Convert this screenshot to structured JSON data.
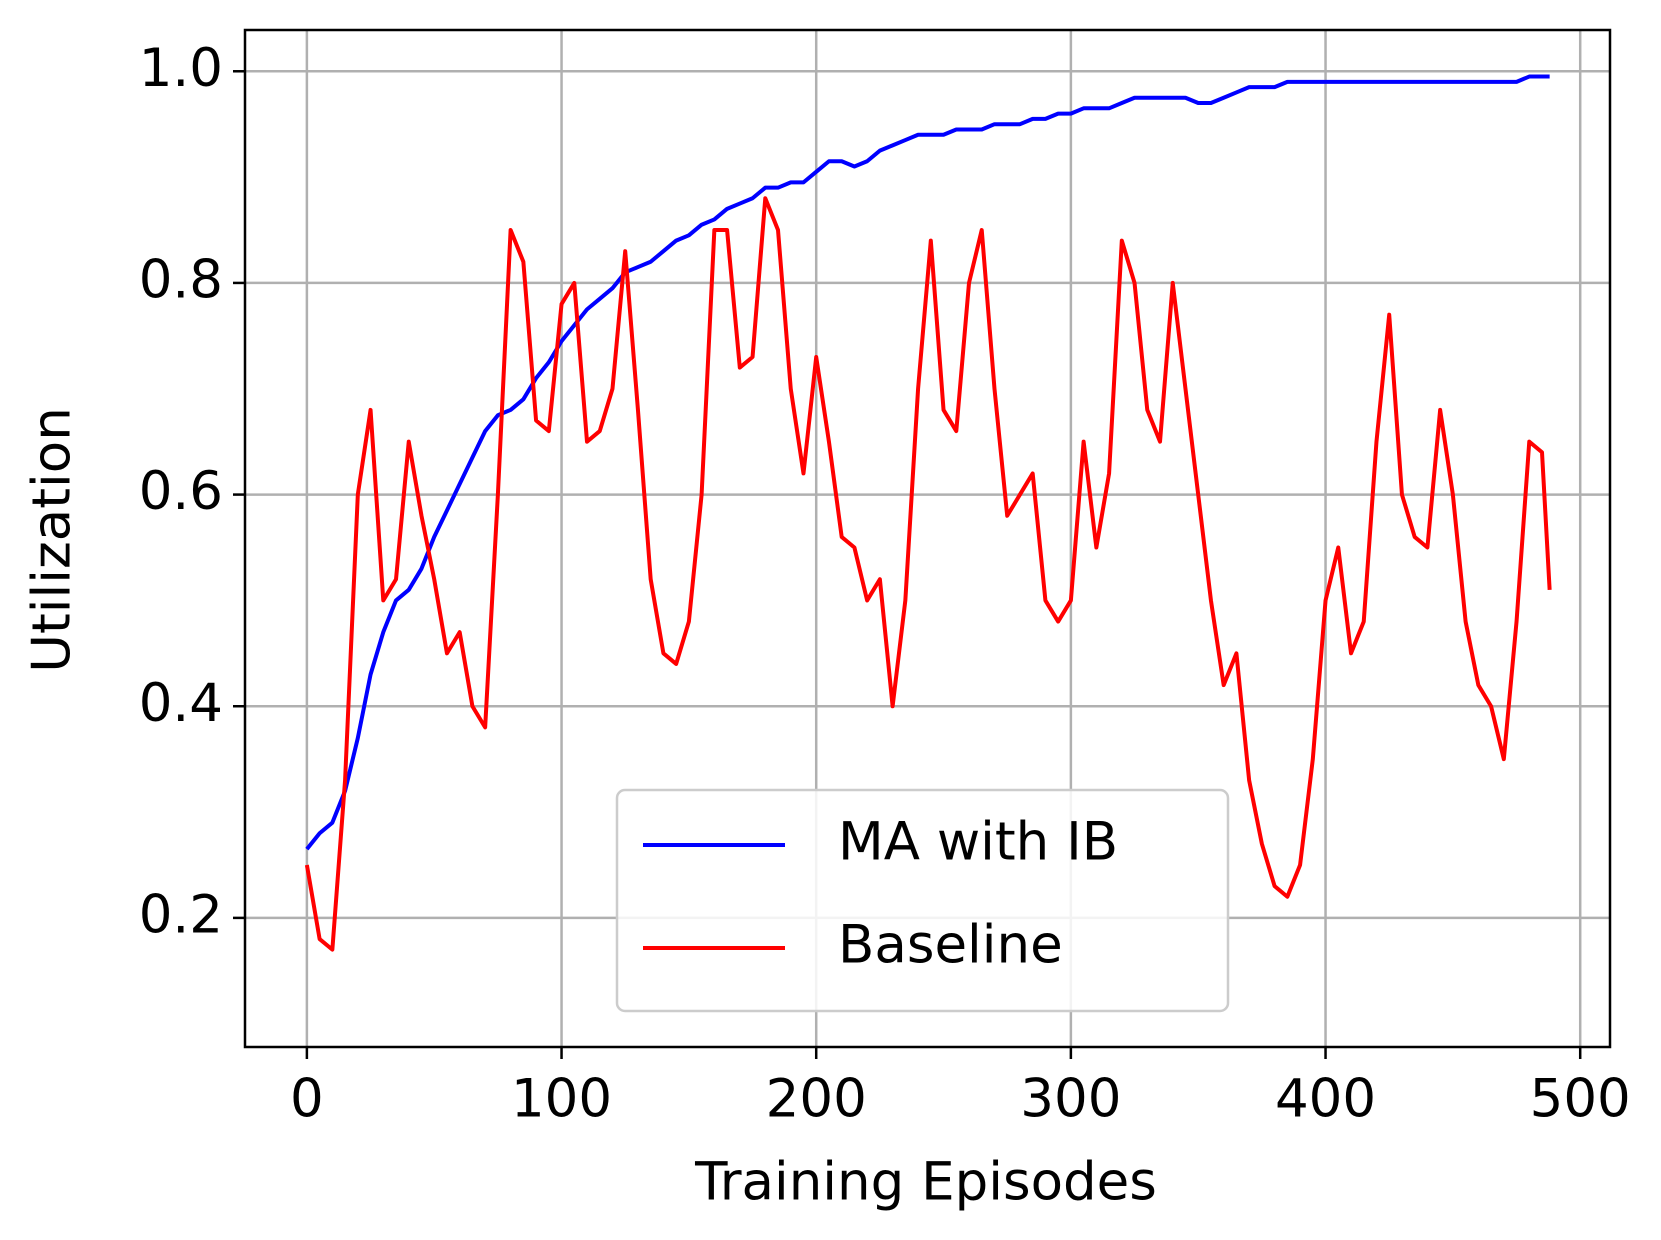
{
  "chart_data": {
    "type": "line",
    "xlabel": "Training Episodes",
    "ylabel": "Utilization",
    "x": [
      0,
      5,
      10,
      15,
      20,
      25,
      30,
      35,
      40,
      45,
      50,
      55,
      60,
      65,
      70,
      75,
      80,
      85,
      90,
      95,
      100,
      105,
      110,
      115,
      120,
      125,
      130,
      135,
      140,
      145,
      150,
      155,
      160,
      165,
      170,
      175,
      180,
      185,
      190,
      195,
      200,
      205,
      210,
      215,
      220,
      225,
      230,
      235,
      240,
      245,
      250,
      255,
      260,
      265,
      270,
      275,
      280,
      285,
      290,
      295,
      300,
      305,
      310,
      315,
      320,
      325,
      330,
      335,
      340,
      345,
      350,
      355,
      360,
      365,
      370,
      375,
      380,
      385,
      390,
      395,
      400,
      405,
      410,
      415,
      420,
      425,
      430,
      435,
      440,
      445,
      450,
      455,
      460,
      465,
      470,
      475,
      480,
      485,
      488
    ],
    "series": [
      {
        "name": "MA with IB",
        "color": "#0000ff",
        "values": [
          0.265,
          0.28,
          0.29,
          0.32,
          0.37,
          0.43,
          0.47,
          0.5,
          0.51,
          0.53,
          0.56,
          0.585,
          0.61,
          0.635,
          0.66,
          0.675,
          0.68,
          0.69,
          0.71,
          0.725,
          0.745,
          0.76,
          0.775,
          0.785,
          0.795,
          0.81,
          0.815,
          0.82,
          0.83,
          0.84,
          0.845,
          0.855,
          0.86,
          0.87,
          0.875,
          0.88,
          0.89,
          0.89,
          0.895,
          0.895,
          0.905,
          0.915,
          0.915,
          0.91,
          0.915,
          0.925,
          0.93,
          0.935,
          0.94,
          0.94,
          0.94,
          0.945,
          0.945,
          0.945,
          0.95,
          0.95,
          0.95,
          0.955,
          0.955,
          0.96,
          0.96,
          0.965,
          0.965,
          0.965,
          0.97,
          0.975,
          0.975,
          0.975,
          0.975,
          0.975,
          0.97,
          0.97,
          0.975,
          0.98,
          0.985,
          0.985,
          0.985,
          0.99,
          0.99,
          0.99,
          0.99,
          0.99,
          0.99,
          0.99,
          0.99,
          0.99,
          0.99,
          0.99,
          0.99,
          0.99,
          0.99,
          0.99,
          0.99,
          0.99,
          0.99,
          0.99,
          0.995,
          0.995,
          0.995
        ]
      },
      {
        "name": "Baseline",
        "color": "#ff0000",
        "values": [
          0.25,
          0.18,
          0.17,
          0.33,
          0.6,
          0.68,
          0.5,
          0.52,
          0.65,
          0.58,
          0.52,
          0.45,
          0.47,
          0.4,
          0.38,
          0.6,
          0.85,
          0.82,
          0.67,
          0.66,
          0.78,
          0.8,
          0.65,
          0.66,
          0.7,
          0.83,
          0.68,
          0.52,
          0.45,
          0.44,
          0.48,
          0.6,
          0.85,
          0.85,
          0.72,
          0.73,
          0.88,
          0.85,
          0.7,
          0.62,
          0.73,
          0.65,
          0.56,
          0.55,
          0.5,
          0.52,
          0.4,
          0.5,
          0.7,
          0.84,
          0.68,
          0.66,
          0.8,
          0.85,
          0.7,
          0.58,
          0.6,
          0.62,
          0.5,
          0.48,
          0.5,
          0.65,
          0.55,
          0.62,
          0.84,
          0.8,
          0.68,
          0.65,
          0.8,
          0.7,
          0.6,
          0.5,
          0.42,
          0.45,
          0.33,
          0.27,
          0.23,
          0.22,
          0.25,
          0.35,
          0.5,
          0.55,
          0.45,
          0.48,
          0.65,
          0.77,
          0.6,
          0.56,
          0.55,
          0.68,
          0.6,
          0.48,
          0.42,
          0.4,
          0.35,
          0.48,
          0.65,
          0.64,
          0.51
        ]
      }
    ],
    "xlim": [
      -24.3,
      511.7
    ],
    "ylim": [
      0.078,
      1.039
    ],
    "xticks": [
      0,
      100,
      200,
      300,
      400,
      500
    ],
    "yticks": [
      0.2,
      0.4,
      0.6,
      0.8,
      {
        "value": 1,
        "label": "1.0"
      }
    ],
    "grid": true,
    "legend": "lower center"
  }
}
